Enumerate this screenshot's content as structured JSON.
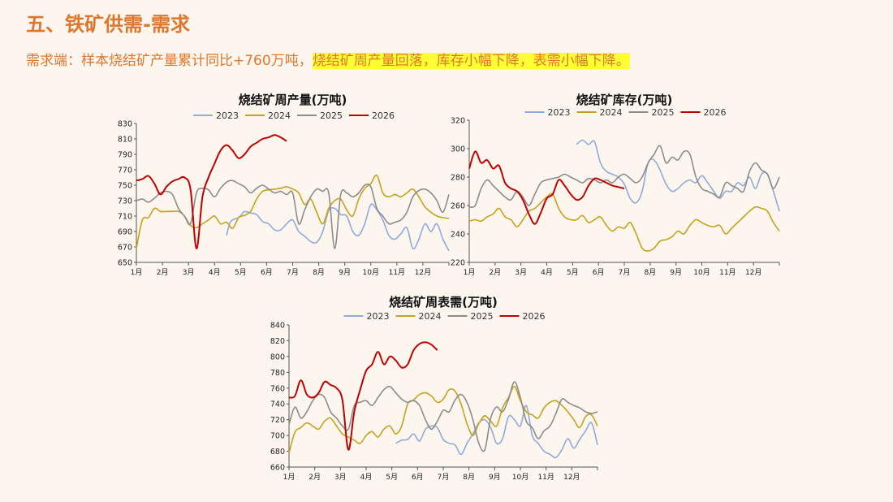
{
  "header": {
    "title": "五、铁矿供需-需求",
    "subtitle_plain": "需求端：样本烧结矿产量累计同比+760万吨，",
    "subtitle_highlight": "烧结矿周产量回落，库存小幅下降，表需小幅下降。"
  },
  "colors": {
    "2023": "#8faadc",
    "2024": "#c9a11a",
    "2025": "#8c8c8c",
    "2026": "#c00000"
  },
  "chart_data": [
    {
      "type": "line",
      "title": "烧结矿周产量(万吨)",
      "x_ticks": [
        "1月",
        "2月",
        "3月",
        "4月",
        "5月",
        "6月",
        "7月",
        "8月",
        "9月",
        "10月",
        "11月",
        "12月"
      ],
      "ylim": [
        650,
        830
      ],
      "y_step": 20,
      "legend": "top",
      "series": [
        {
          "name": "2023",
          "x": [
            15.0,
            15.5,
            16.0,
            17.0,
            17.5,
            18.0,
            19.0,
            20.0,
            21.0,
            22.0,
            23.0,
            24.0,
            25.0,
            26.0,
            27.0,
            28.0,
            29.0,
            30.0,
            31.0,
            32.0,
            33.0,
            34.0,
            35.0,
            36.0,
            37.0,
            38.0,
            39.0,
            40.0,
            41.0,
            42.0,
            43.0,
            44.0,
            45.0,
            46.0,
            47.0,
            48.0,
            49.0,
            50.0,
            51.0,
            52.0
          ],
          "y": [
            685,
            700,
            705,
            708,
            712,
            716,
            714,
            712,
            703,
            700,
            692,
            692,
            700,
            705,
            690,
            684,
            677,
            676,
            690,
            717,
            720,
            712,
            710,
            690,
            685,
            700,
            725,
            718,
            705,
            685,
            680,
            687,
            695,
            668,
            680,
            700,
            690,
            700,
            680,
            665
          ]
        },
        {
          "name": "2024",
          "x": [
            0,
            1,
            2,
            3,
            4,
            5,
            6,
            7,
            8,
            9,
            10,
            11,
            12,
            13,
            14,
            15,
            16,
            17,
            18,
            19,
            20,
            21,
            22,
            23,
            24,
            25,
            26,
            27,
            28,
            29,
            30,
            31,
            32,
            33,
            34,
            35,
            36,
            37,
            38,
            39,
            40,
            41,
            42,
            43,
            44,
            45,
            46,
            47,
            48,
            49,
            50,
            51,
            52
          ],
          "y": [
            668,
            705,
            708,
            720,
            716,
            716,
            716,
            716,
            710,
            698,
            695,
            700,
            705,
            710,
            700,
            702,
            694,
            708,
            711,
            716,
            732,
            742,
            744,
            745,
            746,
            748,
            745,
            740,
            725,
            732,
            715,
            700,
            720,
            730,
            732,
            718,
            710,
            732,
            746,
            752,
            763,
            740,
            735,
            738,
            735,
            740,
            745,
            735,
            722,
            715,
            710,
            708,
            707
          ]
        },
        {
          "name": "2025",
          "x": [
            0,
            1,
            2,
            3,
            4,
            5,
            6,
            7,
            8,
            9,
            10,
            11,
            12,
            13,
            14,
            15,
            16,
            17,
            18,
            19,
            20,
            21,
            22,
            23,
            24,
            25,
            26,
            27,
            28,
            29,
            30,
            31,
            32,
            33,
            34,
            35,
            36,
            37,
            38,
            39,
            40,
            41,
            42,
            43,
            44,
            45,
            46,
            47,
            48,
            49,
            50,
            51,
            52
          ],
          "y": [
            730,
            732,
            728,
            733,
            740,
            742,
            738,
            720,
            710,
            700,
            740,
            746,
            744,
            735,
            746,
            754,
            756,
            752,
            748,
            740,
            746,
            750,
            745,
            740,
            742,
            738,
            740,
            700,
            718,
            735,
            745,
            742,
            740,
            668,
            738,
            740,
            735,
            740,
            750,
            748,
            720,
            710,
            700,
            702,
            705,
            715,
            735,
            743,
            745,
            740,
            730,
            715,
            738
          ]
        },
        {
          "name": "2026",
          "x": [
            0,
            1,
            2,
            3,
            4,
            5,
            6,
            7,
            8,
            9,
            10,
            11,
            12,
            13,
            14,
            15,
            16,
            17,
            18,
            19,
            20,
            21,
            22,
            23,
            24,
            25
          ],
          "y": [
            756,
            758,
            762,
            752,
            738,
            748,
            755,
            758,
            760,
            745,
            668,
            735,
            760,
            778,
            795,
            802,
            795,
            785,
            790,
            800,
            805,
            810,
            812,
            815,
            812,
            807
          ]
        }
      ]
    },
    {
      "type": "line",
      "title": "烧结矿库存(万吨)",
      "x_ticks": [
        "1月",
        "2月",
        "3月",
        "4月",
        "5月",
        "6月",
        "7月",
        "8月",
        "9月",
        "10月",
        "11月",
        "12月"
      ],
      "ylim": [
        220,
        320
      ],
      "y_step": 20,
      "legend": "top",
      "series": [
        {
          "name": "2023",
          "x": [
            18,
            19,
            20,
            21,
            22,
            23,
            24,
            25,
            26,
            27,
            28,
            29,
            30,
            31,
            32,
            33,
            34,
            35,
            36,
            37,
            38,
            39,
            40,
            41,
            42,
            43,
            44,
            45,
            46,
            47,
            48,
            49,
            50,
            51,
            52
          ],
          "y": [
            303,
            306,
            303,
            305,
            290,
            284,
            282,
            280,
            275,
            265,
            262,
            270,
            290,
            292,
            285,
            275,
            270,
            272,
            276,
            278,
            276,
            281,
            276,
            270,
            265,
            270,
            270,
            276,
            274,
            280,
            272,
            282,
            282,
            270,
            256
          ]
        },
        {
          "name": "2024",
          "x": [
            0,
            1,
            2,
            3,
            4,
            5,
            6,
            7,
            8,
            9,
            10,
            11,
            12,
            13,
            14,
            15,
            16,
            17,
            18,
            19,
            20,
            21,
            22,
            23,
            24,
            25,
            26,
            27,
            28,
            29,
            30,
            31,
            32,
            33,
            34,
            35,
            36,
            37,
            38,
            39,
            40,
            41,
            42,
            43,
            44,
            45,
            46,
            47,
            48,
            49,
            50,
            51,
            52
          ],
          "y": [
            249,
            250,
            249,
            252,
            254,
            258,
            252,
            250,
            245,
            250,
            256,
            258,
            262,
            266,
            268,
            258,
            252,
            250,
            250,
            253,
            248,
            250,
            252,
            246,
            242,
            245,
            244,
            248,
            240,
            230,
            228,
            230,
            235,
            236,
            238,
            242,
            240,
            246,
            250,
            248,
            246,
            245,
            246,
            240,
            244,
            248,
            252,
            256,
            259,
            258,
            256,
            248,
            242
          ]
        },
        {
          "name": "2025",
          "x": [
            0,
            1,
            2,
            3,
            4,
            5,
            6,
            7,
            8,
            9,
            10,
            11,
            12,
            13,
            14,
            15,
            16,
            17,
            18,
            19,
            20,
            21,
            22,
            23,
            24,
            25,
            26,
            27,
            28,
            29,
            30,
            31,
            32,
            33,
            34,
            35,
            36,
            37,
            38,
            39,
            40,
            41,
            42,
            43,
            44,
            45,
            46,
            47,
            48,
            49,
            50,
            51,
            52
          ],
          "y": [
            259,
            260,
            272,
            278,
            274,
            270,
            266,
            264,
            270,
            266,
            260,
            268,
            276,
            278,
            279,
            280,
            282,
            280,
            278,
            276,
            279,
            278,
            276,
            278,
            276,
            280,
            282,
            279,
            276,
            280,
            290,
            296,
            302,
            290,
            294,
            292,
            298,
            296,
            280,
            272,
            270,
            268,
            266,
            276,
            274,
            272,
            270,
            284,
            290,
            285,
            282,
            272,
            280
          ]
        },
        {
          "name": "2026",
          "x": [
            0,
            1,
            2,
            3,
            4,
            5,
            6,
            7,
            8,
            9,
            10,
            11,
            12,
            13,
            14,
            15,
            16,
            17,
            18,
            19,
            20,
            21,
            22,
            23,
            24,
            25,
            26
          ],
          "y": [
            286,
            298,
            290,
            292,
            286,
            288,
            276,
            272,
            270,
            264,
            254,
            247,
            255,
            265,
            268,
            278,
            274,
            268,
            264,
            266,
            274,
            279,
            278,
            276,
            274,
            273,
            272
          ]
        }
      ]
    },
    {
      "type": "line",
      "title": "烧结矿周表需(万吨)",
      "x_ticks": [
        "1月",
        "2月",
        "3月",
        "4月",
        "5月",
        "6月",
        "7月",
        "8月",
        "9月",
        "10月",
        "11月",
        "12月"
      ],
      "ylim": [
        660,
        840
      ],
      "y_step": 20,
      "legend": "top",
      "series": [
        {
          "name": "2023",
          "x": [
            18,
            19,
            20,
            21,
            22,
            23,
            24,
            25,
            26,
            27,
            28,
            29,
            30,
            31,
            32,
            33,
            34,
            35,
            36,
            37,
            38,
            39,
            40,
            41,
            42,
            43,
            44,
            45,
            46,
            47,
            48,
            49,
            50,
            51,
            52
          ],
          "y": [
            690,
            694,
            695,
            702,
            693,
            708,
            712,
            710,
            695,
            690,
            688,
            676,
            690,
            702,
            716,
            720,
            710,
            690,
            696,
            724,
            720,
            712,
            738,
            700,
            690,
            680,
            676,
            672,
            682,
            696,
            684,
            695,
            706,
            716,
            688
          ]
        },
        {
          "name": "2024",
          "x": [
            0,
            1,
            2,
            3,
            4,
            5,
            6,
            7,
            8,
            9,
            10,
            11,
            12,
            13,
            14,
            15,
            16,
            17,
            18,
            19,
            20,
            21,
            22,
            23,
            24,
            25,
            26,
            27,
            28,
            29,
            30,
            31,
            32,
            33,
            34,
            35,
            36,
            37,
            38,
            39,
            40,
            41,
            42,
            43,
            44,
            45,
            46,
            47,
            48,
            49,
            50,
            51,
            52
          ],
          "y": [
            678,
            704,
            710,
            716,
            712,
            708,
            718,
            722,
            712,
            702,
            698,
            694,
            690,
            700,
            705,
            698,
            708,
            712,
            702,
            712,
            740,
            745,
            752,
            754,
            750,
            742,
            746,
            758,
            756,
            740,
            715,
            700,
            715,
            725,
            718,
            712,
            735,
            748,
            762,
            744,
            730,
            726,
            722,
            735,
            742,
            744,
            738,
            730,
            720,
            710,
            724,
            726,
            712
          ]
        },
        {
          "name": "2025",
          "x": [
            0,
            1,
            2,
            3,
            4,
            5,
            6,
            7,
            8,
            9,
            10,
            11,
            12,
            13,
            14,
            15,
            16,
            17,
            18,
            19,
            20,
            21,
            22,
            23,
            24,
            25,
            26,
            27,
            28,
            29,
            30,
            31,
            32,
            33,
            34,
            35,
            36,
            37,
            38,
            39,
            40,
            41,
            42,
            43,
            44,
            45,
            46,
            47,
            48,
            49,
            50,
            51,
            52
          ],
          "y": [
            714,
            736,
            722,
            730,
            744,
            752,
            748,
            730,
            722,
            712,
            708,
            738,
            742,
            744,
            738,
            748,
            758,
            762,
            754,
            746,
            742,
            744,
            738,
            720,
            708,
            718,
            732,
            730,
            745,
            752,
            742,
            720,
            690,
            682,
            722,
            736,
            730,
            746,
            768,
            748,
            718,
            710,
            696,
            706,
            712,
            728,
            746,
            742,
            738,
            735,
            730,
            728,
            730
          ]
        },
        {
          "name": "2026",
          "x": [
            0,
            1,
            2,
            3,
            4,
            5,
            6,
            7,
            8,
            9,
            10,
            11,
            12,
            13,
            14,
            15,
            16,
            17,
            18,
            19,
            20,
            21,
            22,
            23,
            24,
            25
          ],
          "y": [
            748,
            750,
            770,
            752,
            748,
            754,
            768,
            764,
            760,
            745,
            682,
            730,
            758,
            782,
            790,
            806,
            790,
            800,
            795,
            786,
            790,
            808,
            816,
            818,
            815,
            808
          ]
        }
      ]
    }
  ]
}
